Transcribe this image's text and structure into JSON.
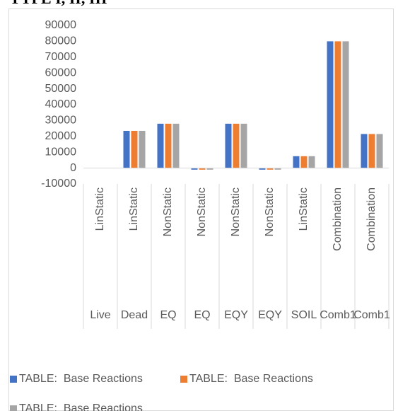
{
  "heading": "TYPE I, II, III",
  "chart_data": {
    "type": "bar",
    "categories": [
      "Live",
      "Dead",
      "EQ",
      "EQ",
      "EQY",
      "EQY",
      "SOIL",
      "Comb1",
      "Comb1"
    ],
    "category_types": [
      "LinStatic",
      "LinStatic",
      "NonStatic",
      "NonStatic",
      "NonStatic",
      "NonStatic",
      "LinStatic",
      "Combination",
      "Combination"
    ],
    "series": [
      {
        "name": "TABLE:  Base Reactions",
        "color": "#4472c4",
        "values": [
          0,
          23500,
          28000,
          -1000,
          28000,
          -1000,
          7500,
          80000,
          21500
        ]
      },
      {
        "name": "TABLE:  Base Reactions",
        "color": "#ed7d31",
        "values": [
          0,
          23500,
          28000,
          -1000,
          28000,
          -1000,
          7500,
          80000,
          21500
        ]
      },
      {
        "name": "TABLE:  Base Reactions",
        "color": "#a5a5a5",
        "values": [
          0,
          23500,
          28000,
          -1000,
          28000,
          -1000,
          7500,
          80000,
          21500
        ]
      }
    ],
    "ylim": [
      -10000,
      90000
    ],
    "yticks": [
      -10000,
      0,
      10000,
      20000,
      30000,
      40000,
      50000,
      60000,
      70000,
      80000,
      90000
    ],
    "grid": false
  }
}
